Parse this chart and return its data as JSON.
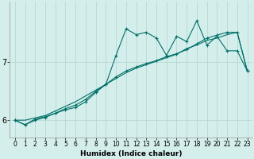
{
  "title": "",
  "xlabel": "Humidex (Indice chaleur)",
  "background_color": "#d4eeeb",
  "grid_color": "#b8d8d4",
  "line_color": "#007068",
  "x_values": [
    0,
    1,
    2,
    3,
    4,
    5,
    6,
    7,
    8,
    9,
    10,
    11,
    12,
    13,
    14,
    15,
    16,
    17,
    18,
    19,
    20,
    21,
    22,
    23
  ],
  "line1_y": [
    6.0,
    5.92,
    6.0,
    6.05,
    6.12,
    6.18,
    6.22,
    6.32,
    6.48,
    6.62,
    7.12,
    7.58,
    7.48,
    7.52,
    7.42,
    7.12,
    7.45,
    7.36,
    7.72,
    7.3,
    7.45,
    7.2,
    7.2,
    6.85
  ],
  "line2_y": [
    6.0,
    5.92,
    6.02,
    6.06,
    6.12,
    6.2,
    6.26,
    6.36,
    6.5,
    6.62,
    6.75,
    6.85,
    6.92,
    6.98,
    7.03,
    7.1,
    7.15,
    7.22,
    7.32,
    7.42,
    7.47,
    7.52,
    7.52,
    6.85
  ],
  "line3_y": [
    6.0,
    6.0,
    6.04,
    6.08,
    6.16,
    6.24,
    6.32,
    6.42,
    6.52,
    6.62,
    6.72,
    6.82,
    6.9,
    6.96,
    7.02,
    7.08,
    7.14,
    7.24,
    7.3,
    7.38,
    7.42,
    7.48,
    7.52,
    6.85
  ],
  "ytick_locs": [
    6,
    7
  ],
  "ytick_labels": [
    "6",
    "7"
  ],
  "ylim": [
    5.7,
    8.05
  ],
  "xlim": [
    -0.5,
    23.5
  ],
  "tick_fontsize": 5.5,
  "xlabel_fontsize": 6.5,
  "ylabel_fontsize": 7,
  "marker_size": 3
}
